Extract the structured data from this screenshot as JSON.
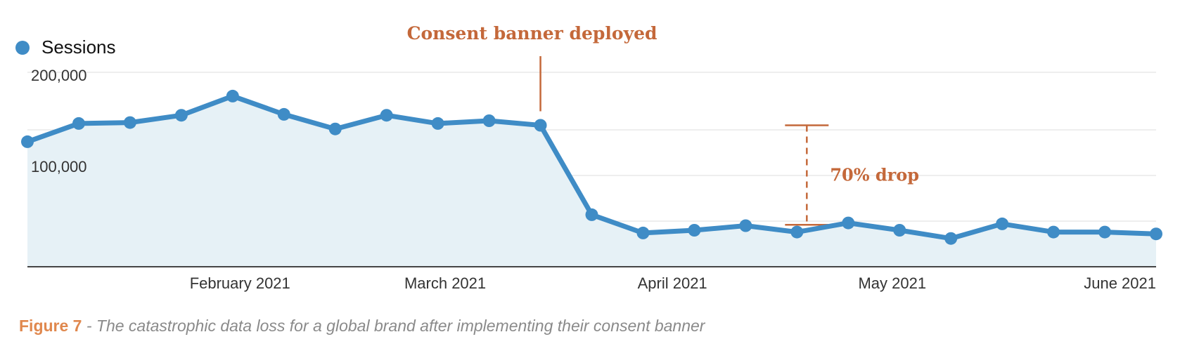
{
  "legend": {
    "label": "Sessions"
  },
  "caption": {
    "figure": "Figure 7",
    "text": " - The catastrophic data loss for a global brand after implementing their consent banner"
  },
  "annotations": {
    "deploy": "Consent banner deployed",
    "drop": "70% drop"
  },
  "colors": {
    "line": "#3f8cc6",
    "area": "#e6f1f6",
    "annotation": "#c4683a",
    "grid": "#e9e9e9",
    "axis": "#444444"
  },
  "chart_data": {
    "type": "area",
    "x": [
      "2021-01-03",
      "2021-01-10",
      "2021-01-17",
      "2021-01-24",
      "2021-01-31",
      "2021-02-07",
      "2021-02-14",
      "2021-02-21",
      "2021-02-28",
      "2021-03-07",
      "2021-03-14",
      "2021-03-21",
      "2021-03-28",
      "2021-04-04",
      "2021-04-11",
      "2021-04-18",
      "2021-04-25",
      "2021-05-02",
      "2021-05-09",
      "2021-05-16",
      "2021-05-23",
      "2021-05-30",
      "2021-06-06"
    ],
    "series": [
      {
        "name": "Sessions",
        "values": [
          137000,
          157000,
          158000,
          166000,
          187000,
          167000,
          151000,
          166000,
          157000,
          160000,
          155000,
          57000,
          37000,
          40000,
          45000,
          38000,
          48000,
          40000,
          31000,
          47000,
          38000,
          38000,
          36000
        ]
      }
    ],
    "y_ticks": [
      {
        "value": 100000,
        "label": "100,000"
      },
      {
        "value": 200000,
        "label": "200,000"
      }
    ],
    "x_ticks": [
      {
        "date": "2021-02-01",
        "label": "February 2021"
      },
      {
        "date": "2021-03-01",
        "label": "March 2021"
      },
      {
        "date": "2021-04-01",
        "label": "April 2021"
      },
      {
        "date": "2021-05-01",
        "label": "May 2021"
      },
      {
        "date": "2021-06-01",
        "label": "June 2021"
      }
    ],
    "ylim": [
      0,
      200000
    ],
    "grid": true,
    "legend_position": "top-left",
    "event": {
      "x": "2021-03-14",
      "label": "Consent banner deployed"
    },
    "drop": {
      "x": "2021-04-18",
      "from": 155000,
      "to": 46000,
      "label": "70% drop"
    }
  }
}
